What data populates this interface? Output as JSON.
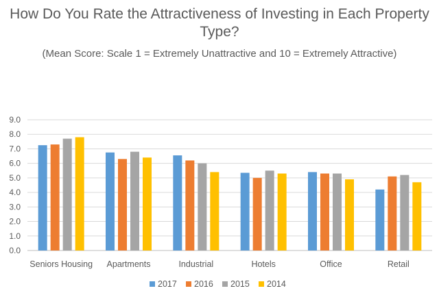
{
  "chart_data": {
    "type": "bar",
    "title": "How Do You Rate the Attractiveness of Investing in Each Property Type?",
    "subtitle": "(Mean Score: Scale 1 = Extremely Unattractive and 10 = Extremely Attractive)",
    "xlabel": "",
    "ylabel": "",
    "ylim": [
      0,
      9
    ],
    "yticks": [
      "0.0",
      "1.0",
      "2.0",
      "3.0",
      "4.0",
      "5.0",
      "6.0",
      "7.0",
      "8.0",
      "9.0"
    ],
    "grid": true,
    "legend_position": "bottom",
    "categories": [
      "Seniors Housing",
      "Apartments",
      "Industrial",
      "Hotels",
      "Office",
      "Retail"
    ],
    "series": [
      {
        "name": "2017",
        "color": "#5B9BD5",
        "values": [
          7.25,
          6.75,
          6.55,
          5.35,
          5.4,
          4.2
        ]
      },
      {
        "name": "2016",
        "color": "#ED7D31",
        "values": [
          7.3,
          6.3,
          6.2,
          5.0,
          5.3,
          5.1
        ]
      },
      {
        "name": "2015",
        "color": "#A5A5A5",
        "values": [
          7.7,
          6.8,
          6.0,
          5.5,
          5.3,
          5.2
        ]
      },
      {
        "name": "2014",
        "color": "#FFC000",
        "values": [
          7.8,
          6.4,
          5.4,
          5.3,
          4.9,
          4.7
        ]
      }
    ]
  }
}
